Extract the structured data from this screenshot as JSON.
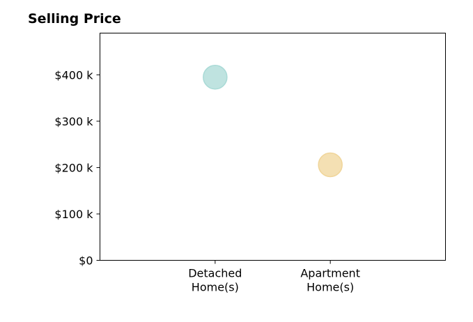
{
  "chart_data": {
    "type": "scatter",
    "title": "Selling Price",
    "xlabel": "",
    "ylabel": "",
    "categories": [
      [
        "Detached",
        "Home(s)"
      ],
      [
        "Apartment",
        "Home(s)"
      ]
    ],
    "values": [
      395,
      206
    ],
    "ylim": [
      0,
      490
    ],
    "yticks": [
      0,
      100,
      200,
      300,
      400
    ],
    "ytick_labels": [
      "$0",
      "$100 k",
      "$200 k",
      "$300 k",
      "$400 k"
    ],
    "point_colors": [
      "#a9dad6",
      "#f0d59a"
    ],
    "grid": false,
    "legend": "none"
  }
}
